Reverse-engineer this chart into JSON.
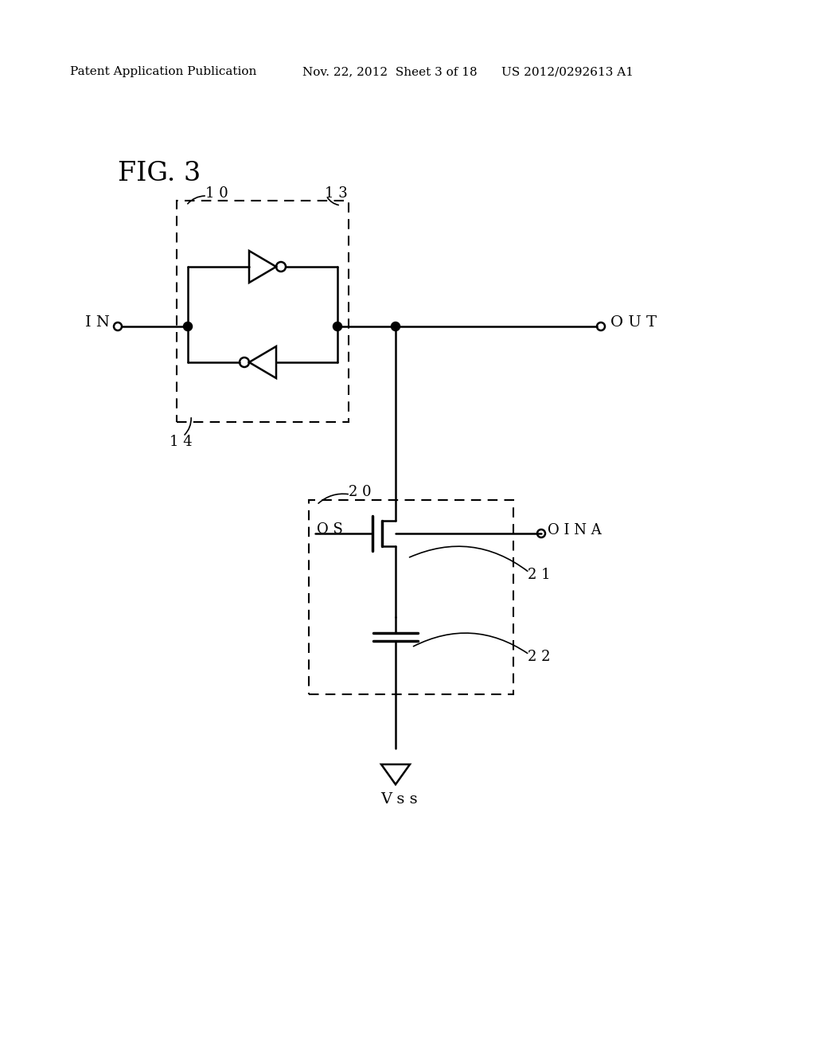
{
  "bg_color": "#ffffff",
  "header_text_left": "Patent Application Publication",
  "header_text_mid": "Nov. 22, 2012  Sheet 3 of 18",
  "header_text_right": "US 2012/0292613 A1",
  "fig_label": "FIG. 3",
  "label_10": "1 0",
  "label_13": "1 3",
  "label_14": "1 4",
  "label_20": "2 0",
  "label_21": "2 1",
  "label_22": "2 2",
  "label_IN": "I N",
  "label_OUT": "O U T",
  "label_OS": "O S",
  "label_INA": "O I N A",
  "label_Vss": "V s s"
}
